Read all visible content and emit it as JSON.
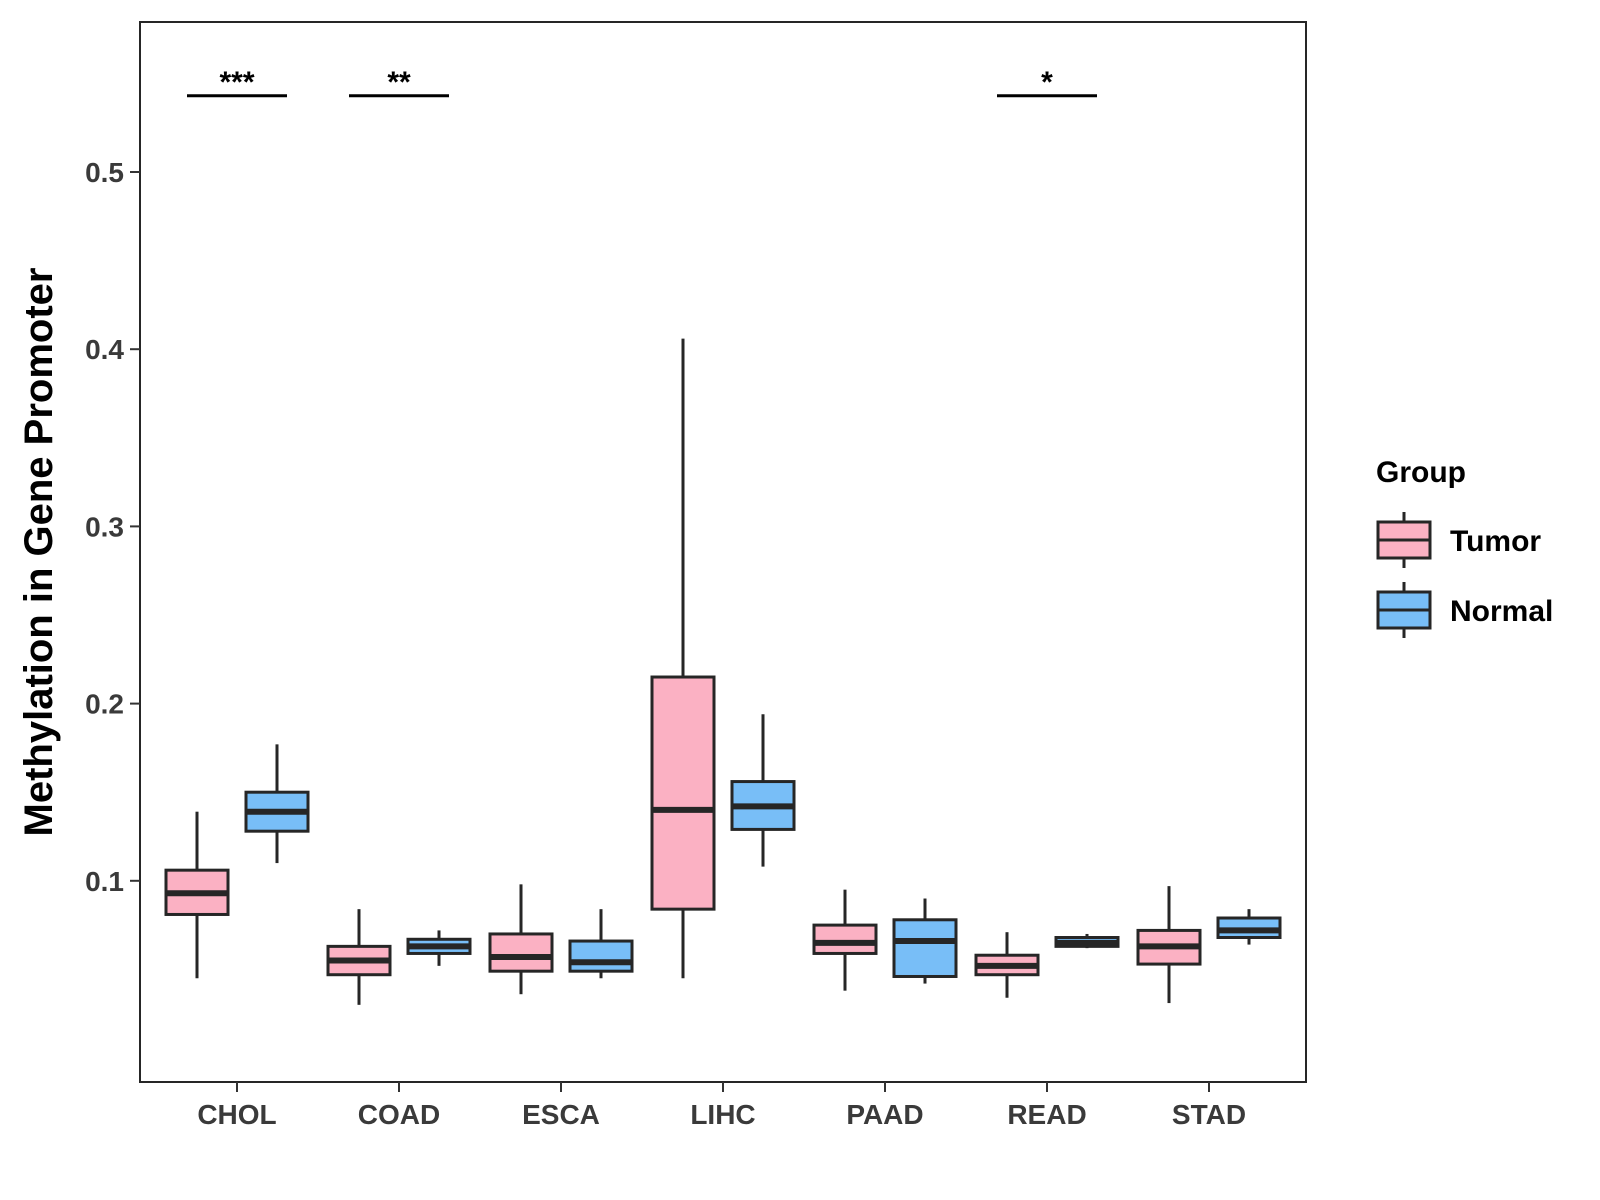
{
  "chart_data": {
    "type": "boxplot",
    "title": "",
    "xlabel": "",
    "ylabel": "Methylation in Gene Promoter",
    "ylim": [
      0.0,
      0.58
    ],
    "yticks": [
      0.1,
      0.2,
      0.3,
      0.4,
      0.5
    ],
    "ytick_labels": [
      "0.1",
      "0.2",
      "0.3",
      "0.4",
      "0.5"
    ],
    "categories": [
      "CHOL",
      "COAD",
      "ESCA",
      "LIHC",
      "PAAD",
      "READ",
      "STAD"
    ],
    "legend": {
      "title": "Group",
      "position": "right",
      "entries": [
        {
          "name": "Tumor",
          "color": "#FBB1C3"
        },
        {
          "name": "Normal",
          "color": "#78BEF7"
        }
      ]
    },
    "series": [
      {
        "name": "Tumor",
        "color": "#FBB1C3",
        "boxes": [
          {
            "category": "CHOL",
            "min": 0.045,
            "q1": 0.081,
            "median": 0.093,
            "q3": 0.106,
            "max": 0.139
          },
          {
            "category": "COAD",
            "min": 0.03,
            "q1": 0.047,
            "median": 0.055,
            "q3": 0.063,
            "max": 0.084
          },
          {
            "category": "ESCA",
            "min": 0.036,
            "q1": 0.049,
            "median": 0.057,
            "q3": 0.07,
            "max": 0.098
          },
          {
            "category": "LIHC",
            "min": 0.045,
            "q1": 0.084,
            "median": 0.14,
            "q3": 0.215,
            "max": 0.406
          },
          {
            "category": "PAAD",
            "min": 0.038,
            "q1": 0.059,
            "median": 0.065,
            "q3": 0.075,
            "max": 0.095
          },
          {
            "category": "READ",
            "min": 0.034,
            "q1": 0.047,
            "median": 0.052,
            "q3": 0.058,
            "max": 0.071
          },
          {
            "category": "STAD",
            "min": 0.031,
            "q1": 0.053,
            "median": 0.063,
            "q3": 0.072,
            "max": 0.097
          }
        ]
      },
      {
        "name": "Normal",
        "color": "#78BEF7",
        "boxes": [
          {
            "category": "CHOL",
            "min": 0.11,
            "q1": 0.128,
            "median": 0.139,
            "q3": 0.15,
            "max": 0.177
          },
          {
            "category": "COAD",
            "min": 0.052,
            "q1": 0.059,
            "median": 0.063,
            "q3": 0.067,
            "max": 0.072
          },
          {
            "category": "ESCA",
            "min": 0.045,
            "q1": 0.049,
            "median": 0.054,
            "q3": 0.066,
            "max": 0.084
          },
          {
            "category": "LIHC",
            "min": 0.108,
            "q1": 0.129,
            "median": 0.142,
            "q3": 0.156,
            "max": 0.194
          },
          {
            "category": "PAAD",
            "min": 0.042,
            "q1": 0.046,
            "median": 0.066,
            "q3": 0.078,
            "max": 0.09
          },
          {
            "category": "READ",
            "min": 0.062,
            "q1": 0.063,
            "median": 0.065,
            "q3": 0.068,
            "max": 0.07
          },
          {
            "category": "STAD",
            "min": 0.064,
            "q1": 0.068,
            "median": 0.072,
            "q3": 0.079,
            "max": 0.084
          }
        ]
      }
    ],
    "annotations": [
      {
        "category": "CHOL",
        "text": "***",
        "y": 0.543
      },
      {
        "category": "COAD",
        "text": "**",
        "y": 0.543
      },
      {
        "category": "READ",
        "text": "*",
        "y": 0.543
      }
    ]
  }
}
